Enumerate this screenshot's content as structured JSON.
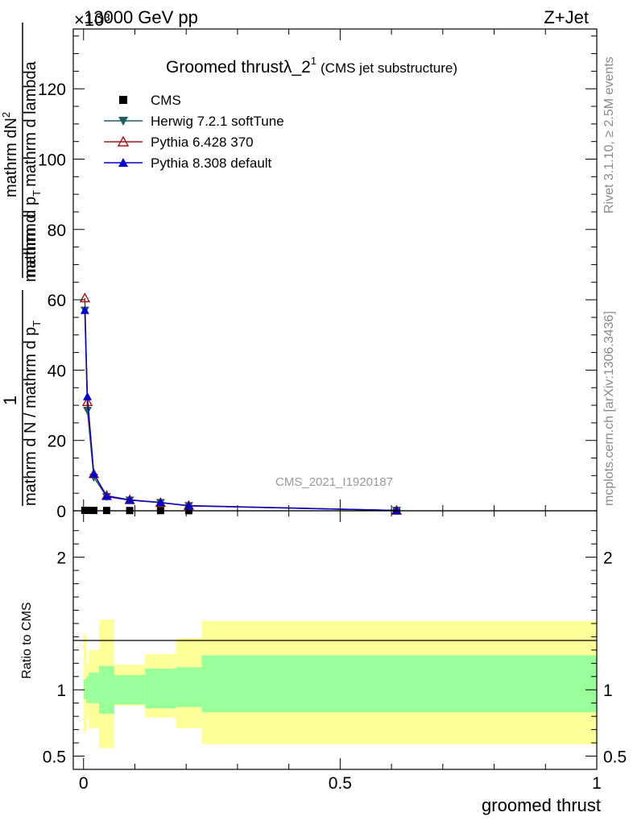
{
  "header": {
    "energy_label": "13000 GeV pp",
    "process_label": "Z+Jet",
    "exponent_label": "×10³"
  },
  "side_labels": {
    "rivet": "Rivet 3.1.10, ≥ 2.5M events",
    "mcplots": "mcplots.cern.ch [arXiv:1306.3436]"
  },
  "chart_data": {
    "type": "line",
    "title": "Groomed thrustλ_2",
    "title_superscript": "1",
    "subtitle": "(CMS jet substructure)",
    "analysis_tag": "CMS_2021_I1920187",
    "xlabel": "groomed thrust",
    "ylabel_main": {
      "numerator_fraction": "1",
      "denominator_fraction": "mathrm d N / mathrm d p",
      "denominator_sub": "T",
      "rest": "mathrm d",
      "rest2": "N",
      "rest_sup": "2",
      "rest_den": "mathrm d p",
      "rest_den_sub": "T",
      "rest_den2": "mathrm d lambda"
    },
    "ylabel_ratio": "Ratio to CMS",
    "xlim": [
      -0.02,
      1.0
    ],
    "ylim_main": [
      0,
      137
    ],
    "ylim_ratio": [
      0.4,
      2.35
    ],
    "x_ticks": [
      0,
      0.5,
      1
    ],
    "x_tick_labels": [
      "0",
      "0.5",
      "1"
    ],
    "y_ticks_main": [
      0,
      20,
      40,
      60,
      80,
      100,
      120
    ],
    "y_tick_labels_main": [
      "0",
      "20",
      "40",
      "60",
      "80",
      "100",
      "120"
    ],
    "y_ticks_ratio": [
      0.5,
      1,
      2
    ],
    "y_tick_labels_ratio": [
      "0.5",
      "1",
      "2"
    ],
    "x": [
      0.0025,
      0.0075,
      0.02,
      0.045,
      0.09,
      0.15,
      0.205,
      0.61
    ],
    "series": [
      {
        "name": "CMS",
        "marker": "square",
        "color": "#000000",
        "values": [
          0.12,
          0.12,
          0.1,
          0.08,
          0.06,
          0.05,
          0.04,
          0.01
        ]
      },
      {
        "name": "Herwig 7.2.1 softTune",
        "marker": "triangle-down",
        "color": "#1f6060",
        "values": [
          57.0,
          28.5,
          9.5,
          4.0,
          3.0,
          2.3,
          1.4,
          0.1
        ]
      },
      {
        "name": "Pythia 6.428 370",
        "marker": "triangle-up-open",
        "color": "#a31515",
        "values": [
          60.5,
          31.0,
          10.5,
          4.3,
          3.1,
          2.3,
          1.5,
          0.1
        ]
      },
      {
        "name": "Pythia 8.308 default",
        "marker": "triangle-up",
        "color": "#0000cc",
        "values": [
          57.0,
          32.5,
          10.5,
          4.1,
          3.1,
          2.4,
          1.4,
          0.1
        ]
      }
    ],
    "ratio_bands": {
      "bin_edges": [
        0,
        0.005,
        0.01,
        0.03,
        0.06,
        0.12,
        0.18,
        0.23,
        1.0
      ],
      "stat": [
        [
          0.93,
          1.08
        ],
        [
          0.9,
          1.1
        ],
        [
          0.9,
          1.13
        ],
        [
          0.82,
          1.18
        ],
        [
          0.89,
          1.11
        ],
        [
          0.86,
          1.16
        ],
        [
          0.87,
          1.17
        ],
        [
          0.83,
          1.26
        ],
        [
          0.83,
          1.26
        ]
      ],
      "total": [
        [
          0.68,
          1.42
        ],
        [
          0.79,
          1.2
        ],
        [
          0.71,
          1.3
        ],
        [
          0.56,
          1.53
        ],
        [
          0.88,
          1.19
        ],
        [
          0.79,
          1.27
        ],
        [
          0.71,
          1.39
        ],
        [
          0.59,
          1.52
        ],
        [
          0.59,
          1.52
        ]
      ],
      "stat_color": "#99ff99",
      "total_color": "#ffff99"
    },
    "legend_position": "top-left",
    "grid": false
  }
}
